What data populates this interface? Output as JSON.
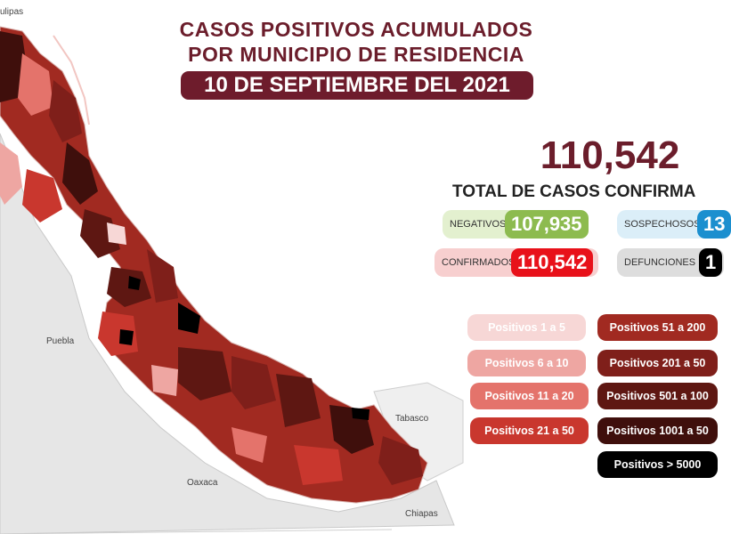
{
  "header": {
    "title_line1": "CASOS POSITIVOS ACUMULADOS",
    "title_line2": "POR MUNICIPIO DE RESIDENCIA",
    "date": "10 DE SEPTIEMBRE DEL 2021"
  },
  "summary": {
    "total": "110,542",
    "total_label": "TOTAL DE CASOS CONFIRMA"
  },
  "stats": {
    "negativos": {
      "label": "NEGATIVOS",
      "value": "107,935"
    },
    "sospechosos": {
      "label": "SOSPECHOSOS",
      "value": "13"
    },
    "confirmados": {
      "label": "CONFIRMADOS",
      "value": "110,542"
    },
    "defunciones": {
      "label": "DEFUNCIONES",
      "value": "1"
    }
  },
  "legend": [
    {
      "label": "Positivos 1 a 5",
      "color": "#f7d7d6"
    },
    {
      "label": "Positivos 6 a 10",
      "color": "#eea6a2"
    },
    {
      "label": "Positivos 11 a 20",
      "color": "#e4736b"
    },
    {
      "label": "Positivos 21 a 50",
      "color": "#c9372e"
    },
    {
      "label": "Positivos 51 a 200",
      "color": "#a12a21"
    },
    {
      "label": "Positivos 201 a 50",
      "color": "#7f1f1a"
    },
    {
      "label": "Positivos 501 a 100",
      "color": "#5e1712"
    },
    {
      "label": "Positivos 1001 a 50",
      "color": "#3f0f0c"
    },
    {
      "label": "Positivos > 5000",
      "color": "#000000"
    }
  ],
  "map": {
    "labels": {
      "tamaulipas": "ulipas",
      "puebla": "Puebla",
      "oaxaca": "Oaxaca",
      "tabasco": "Tabasco",
      "chiapas": "Chiapas"
    },
    "colors": {
      "neighbor": "#e4e4e4",
      "outline": "#bdbdbd"
    }
  }
}
